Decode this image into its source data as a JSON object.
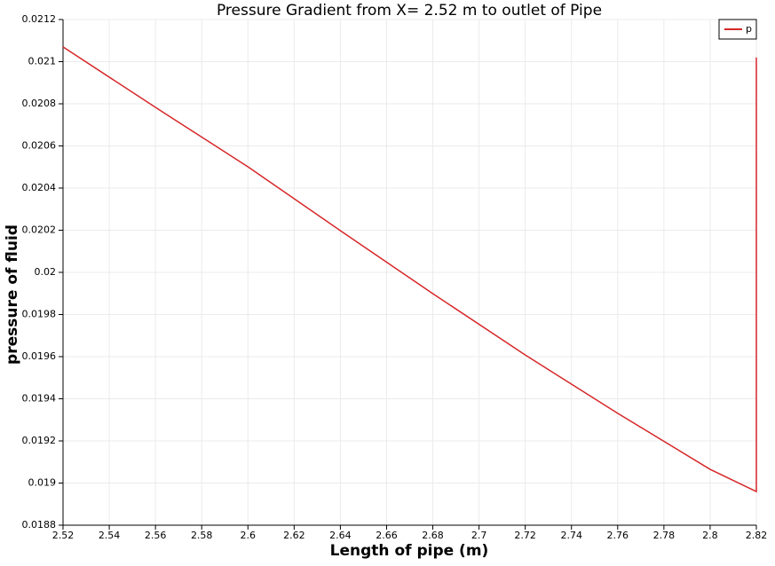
{
  "chart_data": {
    "type": "line",
    "title": "Pressure Gradient from X= 2.52 m to outlet of Pipe",
    "x_label": "Length of pipe (m)",
    "y_label": "pressure of fluid",
    "x": [
      2.52,
      2.56,
      2.6,
      2.64,
      2.68,
      2.72,
      2.76,
      2.8,
      2.82,
      2.82,
      2.82
    ],
    "series": [
      {
        "name": "p",
        "color": "#d62728",
        "values": [
          0.02107,
          0.020783,
          0.020501,
          0.020198,
          0.019899,
          0.019608,
          0.019331,
          0.019065,
          0.01896,
          0.01898,
          0.02102
        ]
      }
    ],
    "xlim": [
      2.52,
      2.82
    ],
    "xticks": [
      2.52,
      2.54,
      2.56,
      2.58,
      2.6,
      2.62,
      2.64,
      2.66,
      2.68,
      2.7,
      2.72,
      2.74,
      2.76,
      2.78,
      2.8,
      2.82
    ],
    "ylim": [
      0.0188,
      0.0212
    ],
    "yticks": [
      0.0188,
      0.019,
      0.0192,
      0.0194,
      0.0196,
      0.0198,
      0.02,
      0.0202,
      0.0204,
      0.0206,
      0.0208,
      0.021,
      0.0212
    ],
    "grid": true,
    "legend": "top-right"
  }
}
